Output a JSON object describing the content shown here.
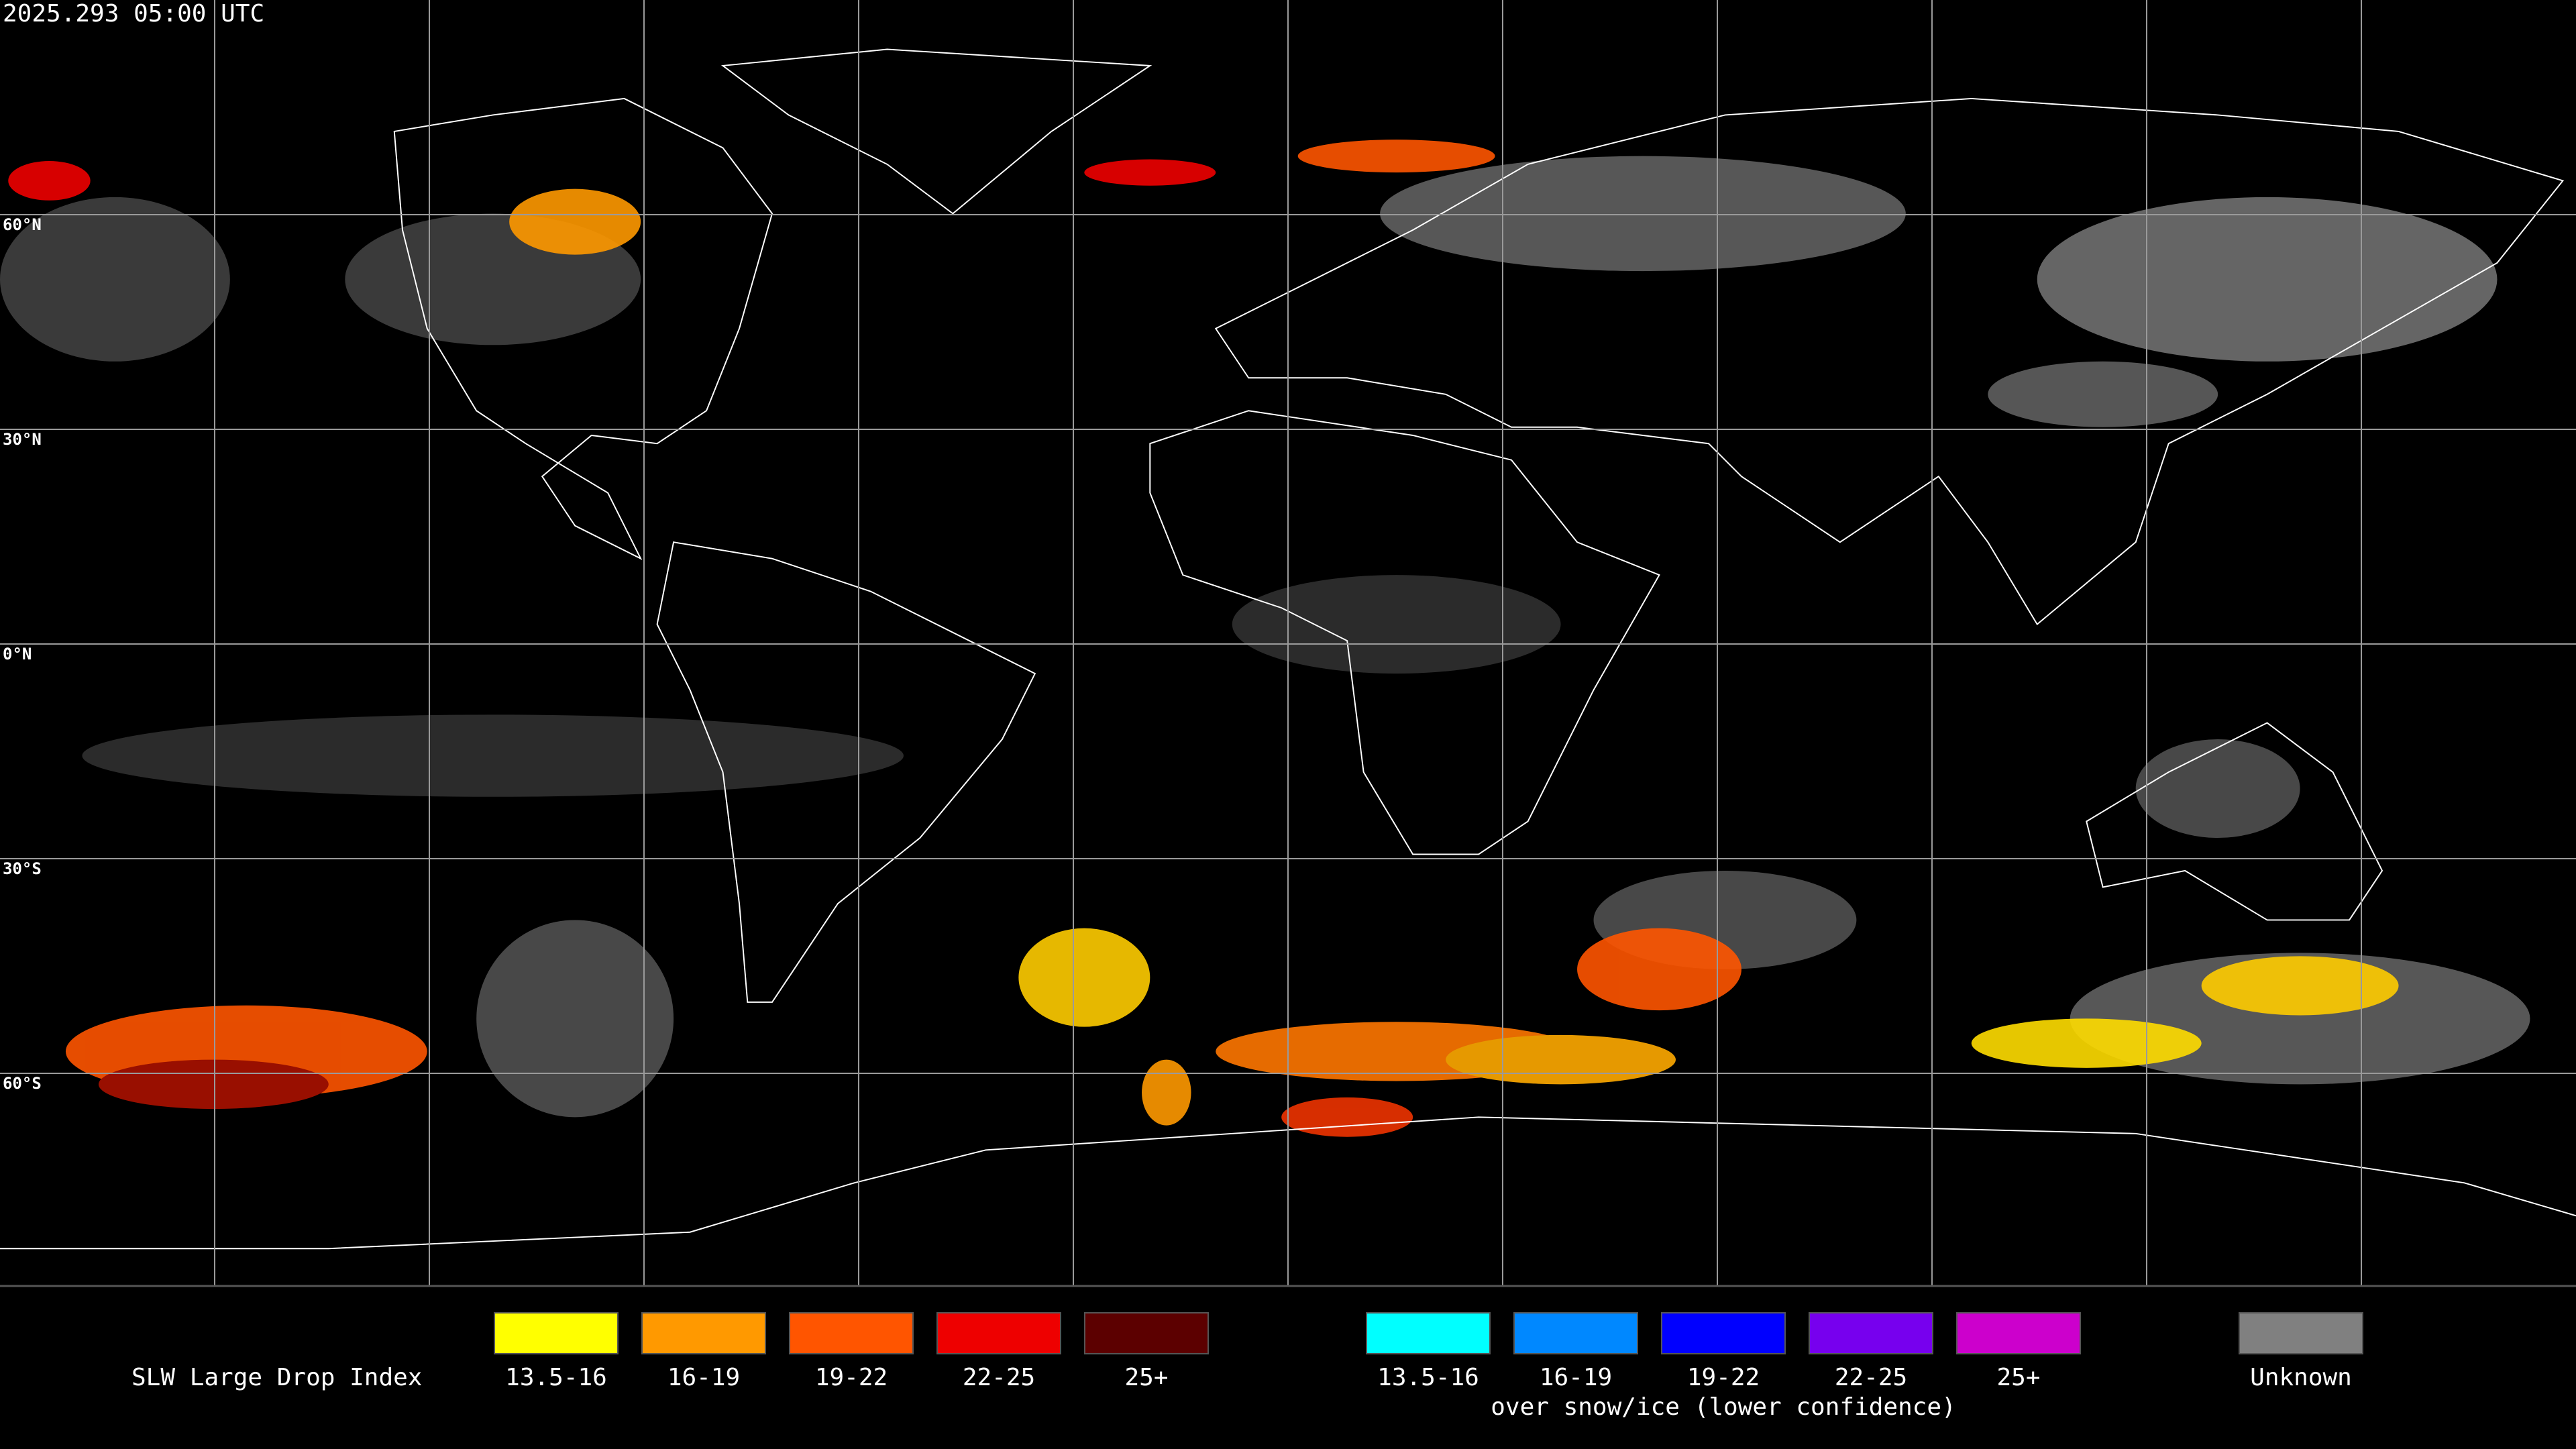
{
  "header": {
    "timestamp": "2025.293 05:00 UTC"
  },
  "map": {
    "latitude_labels": [
      "60°N",
      "30°N",
      "0°N",
      "30°S",
      "60°S"
    ]
  },
  "legend": {
    "title": "SLW Large Drop Index",
    "groups": [
      {
        "items": [
          {
            "label": "13.5-16",
            "color": "#ffff00"
          },
          {
            "label": "16-19",
            "color": "#ff9900"
          },
          {
            "label": "19-22",
            "color": "#ff5500"
          },
          {
            "label": "22-25",
            "color": "#ee0000"
          },
          {
            "label": "25+",
            "color": "#5c0000"
          }
        ]
      },
      {
        "items": [
          {
            "label": "13.5-16",
            "color": "#00ffff"
          },
          {
            "label": "16-19",
            "color": "#0088ff"
          },
          {
            "label": "19-22",
            "color": "#0000ff"
          },
          {
            "label": "22-25",
            "color": "#7700ee"
          },
          {
            "label": "25+",
            "color": "#cc00cc"
          }
        ],
        "caption": "over snow/ice (lower confidence)"
      },
      {
        "items": [
          {
            "label": "Unknown",
            "color": "#808080"
          }
        ]
      }
    ]
  }
}
